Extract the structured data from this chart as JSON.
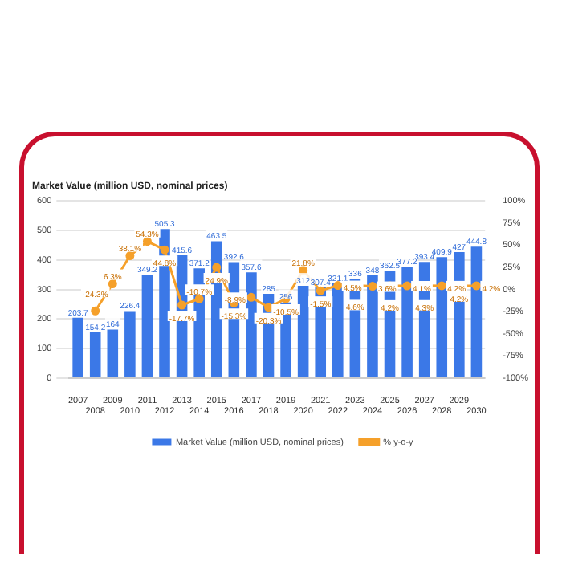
{
  "chart_data": {
    "type": "bar",
    "title": "Market Value (million USD, nominal prices)",
    "categories": [
      "2007",
      "2008",
      "2009",
      "2010",
      "2011",
      "2012",
      "2013",
      "2014",
      "2015",
      "2016",
      "2017",
      "2018",
      "2019",
      "2020",
      "2021",
      "2022",
      "2023",
      "2024",
      "2025",
      "2026",
      "2027",
      "2028",
      "2029",
      "2030"
    ],
    "series": [
      {
        "name": "Market Value (million USD, nominal prices)",
        "color": "#3b78e7",
        "values": [
          203.7,
          154.2,
          164,
          226.4,
          349.2,
          505.3,
          415.6,
          371.2,
          463.5,
          392.6,
          357.6,
          285,
          256,
          312,
          307.4,
          321.1,
          336,
          348,
          362.5,
          377.2,
          393.4,
          409.9,
          427,
          444.8
        ]
      },
      {
        "name": "% y-o-y",
        "type": "line",
        "axis": "y2",
        "color": "#f5a02a",
        "values": [
          null,
          -24.3,
          6.3,
          38.1,
          54.3,
          44.8,
          -17.7,
          -10.7,
          24.9,
          -15.3,
          -8.9,
          -20.3,
          -10.5,
          21.8,
          -1.5,
          4.5,
          4.6,
          3.6,
          4.2,
          4.1,
          4.3,
          4.2,
          4.2,
          4.2
        ],
        "value_labels": [
          null,
          "-24.3%",
          "6.3%",
          "38.1%",
          "54.3%",
          "44.8%",
          "-17.7%",
          "-10.7%",
          "24.9%",
          "-15.3%",
          "-8.9%",
          "-20.3%",
          "-10.5%",
          "21.8%",
          "-1.5%",
          "4.5%",
          "4.6%",
          "3.6%",
          "4.2%",
          "4.1%",
          "4.3%",
          "4.2%",
          "4.2%",
          "4.2%"
        ]
      }
    ],
    "ylim": [
      0,
      600
    ],
    "yticks": [
      0,
      100,
      200,
      300,
      400,
      500,
      600
    ],
    "y2lim": [
      -100,
      100
    ],
    "y2ticks": [
      {
        "value": -100,
        "label": "-100%"
      },
      {
        "value": -75,
        "label": "-75%"
      },
      {
        "value": -50,
        "label": "-50%"
      },
      {
        "value": -25,
        "label": "-25%"
      },
      {
        "value": 0,
        "label": "0%"
      },
      {
        "value": 25,
        "label": "25%"
      },
      {
        "value": 50,
        "label": "50%"
      },
      {
        "value": 75,
        "label": "75%"
      },
      {
        "value": 100,
        "label": "100%"
      }
    ],
    "grid": "y",
    "legend": "bottom",
    "marker": "circle",
    "data_labels": true
  }
}
